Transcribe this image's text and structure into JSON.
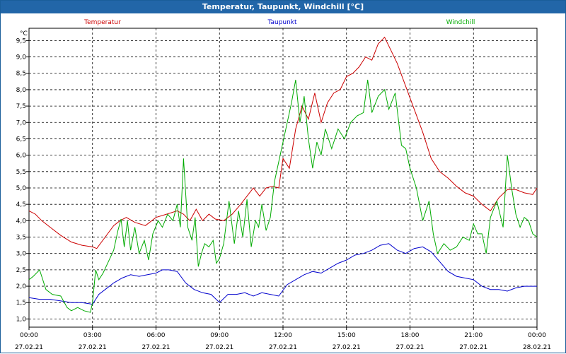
{
  "chart_data": {
    "type": "line",
    "title": "Temperatur, Taupunkt, Windchill [°C]",
    "ylabel": "°C",
    "ylim": [
      0.75,
      9.875
    ],
    "xlim": [
      0,
      24
    ],
    "grid": true,
    "yticks": [
      1.0,
      1.5,
      2.0,
      2.5,
      3.0,
      3.5,
      4.0,
      4.5,
      5.0,
      5.5,
      6.0,
      6.5,
      7.0,
      7.5,
      8.0,
      8.5,
      9.0,
      9.5
    ],
    "ytick_labels": [
      "1,0",
      "1,5",
      "2,0",
      "2,5",
      "3,0",
      "3,5",
      "4,0",
      "4,5",
      "5,0",
      "5,5",
      "6,0",
      "6,5",
      "7,0",
      "7,5",
      "8,0",
      "8,5",
      "9,0",
      "9,5"
    ],
    "xticks": [
      0,
      3,
      6,
      9,
      12,
      15,
      18,
      21,
      24
    ],
    "xtick_times": [
      "00:00",
      "03:00",
      "06:00",
      "09:00",
      "12:00",
      "15:00",
      "18:00",
      "21:00",
      "00:00"
    ],
    "xtick_dates": [
      "27.02.21",
      "27.02.21",
      "27.02.21",
      "27.02.21",
      "27.02.21",
      "27.02.21",
      "27.02.21",
      "27.02.21",
      "28.02.21"
    ],
    "legend_placement": "top",
    "series": [
      {
        "name": "Temperatur",
        "color": "#cc0000",
        "x": [
          0,
          0.3,
          0.6,
          1,
          1.5,
          2,
          2.5,
          3,
          3.2,
          3.6,
          4,
          4.3,
          4.6,
          5,
          5.5,
          6,
          6.5,
          7,
          7.3,
          7.6,
          7.9,
          8.2,
          8.5,
          8.8,
          9.2,
          9.6,
          10,
          10.3,
          10.6,
          10.9,
          11.2,
          11.5,
          11.8,
          12,
          12.3,
          12.6,
          12.9,
          13.2,
          13.5,
          13.8,
          14.1,
          14.4,
          14.7,
          15,
          15.3,
          15.6,
          15.9,
          16.2,
          16.5,
          16.8,
          17.1,
          17.4,
          17.8,
          18.2,
          18.6,
          19,
          19.4,
          19.8,
          20.2,
          20.6,
          21,
          21.4,
          21.8,
          22.2,
          22.6,
          23,
          23.4,
          23.8,
          24
        ],
        "values": [
          4.3,
          4.2,
          4.0,
          3.8,
          3.55,
          3.35,
          3.25,
          3.2,
          3.15,
          3.5,
          3.85,
          4.0,
          4.1,
          3.95,
          3.85,
          4.1,
          4.2,
          4.3,
          4.2,
          4.0,
          4.35,
          4.0,
          4.2,
          4.05,
          4.0,
          4.2,
          4.5,
          4.75,
          5.0,
          4.75,
          5.0,
          5.05,
          5.0,
          5.9,
          5.6,
          6.8,
          7.5,
          7.1,
          7.9,
          7.0,
          7.6,
          7.9,
          8.0,
          8.4,
          8.5,
          8.7,
          9.0,
          8.9,
          9.4,
          9.6,
          9.2,
          8.8,
          8.1,
          7.4,
          6.7,
          5.9,
          5.5,
          5.3,
          5.05,
          4.85,
          4.75,
          4.5,
          4.3,
          4.7,
          4.95,
          4.95,
          4.85,
          4.8,
          5.0
        ]
      },
      {
        "name": "Taupunkt",
        "color": "#0000cc",
        "x": [
          0,
          0.5,
          1,
          1.5,
          2,
          2.5,
          3,
          3.3,
          3.6,
          4,
          4.4,
          4.8,
          5.2,
          5.6,
          6,
          6.3,
          6.6,
          7,
          7.4,
          7.8,
          8.2,
          8.6,
          9,
          9.4,
          9.8,
          10.2,
          10.6,
          11,
          11.4,
          11.8,
          12.2,
          12.6,
          13,
          13.4,
          13.8,
          14.2,
          14.6,
          15,
          15.4,
          15.8,
          16.2,
          16.6,
          17,
          17.4,
          17.8,
          18.2,
          18.6,
          19,
          19.4,
          19.8,
          20.2,
          20.6,
          21,
          21.4,
          21.8,
          22.2,
          22.6,
          23,
          23.4,
          23.8,
          24
        ],
        "values": [
          1.65,
          1.6,
          1.6,
          1.55,
          1.5,
          1.5,
          1.45,
          1.75,
          1.9,
          2.1,
          2.25,
          2.35,
          2.3,
          2.35,
          2.4,
          2.5,
          2.5,
          2.45,
          2.1,
          1.9,
          1.8,
          1.75,
          1.5,
          1.75,
          1.75,
          1.8,
          1.7,
          1.8,
          1.75,
          1.7,
          2.05,
          2.2,
          2.35,
          2.45,
          2.4,
          2.55,
          2.7,
          2.8,
          2.95,
          3.0,
          3.1,
          3.25,
          3.3,
          3.1,
          3.0,
          3.15,
          3.2,
          3.05,
          2.75,
          2.45,
          2.3,
          2.25,
          2.2,
          2.0,
          1.9,
          1.9,
          1.85,
          1.95,
          2.0,
          2.0,
          2.0
        ]
      },
      {
        "name": "Windchill",
        "color": "#00aa00",
        "x": [
          0,
          0.2,
          0.5,
          0.8,
          1.1,
          1.5,
          1.8,
          2.0,
          2.3,
          2.6,
          2.9,
          3.0,
          3.15,
          3.3,
          3.5,
          3.75,
          4.0,
          4.2,
          4.35,
          4.5,
          4.65,
          4.8,
          5.0,
          5.2,
          5.45,
          5.65,
          5.85,
          6.1,
          6.3,
          6.55,
          6.8,
          7.0,
          7.15,
          7.3,
          7.5,
          7.7,
          7.85,
          8.0,
          8.15,
          8.3,
          8.5,
          8.7,
          8.85,
          9.0,
          9.2,
          9.45,
          9.7,
          9.9,
          10.1,
          10.3,
          10.5,
          10.7,
          10.85,
          11.0,
          11.2,
          11.4,
          11.6,
          11.8,
          12.0,
          12.2,
          12.4,
          12.6,
          12.8,
          13.0,
          13.2,
          13.4,
          13.6,
          13.8,
          14.0,
          14.3,
          14.6,
          14.9,
          15.2,
          15.5,
          15.8,
          16.0,
          16.2,
          16.5,
          16.8,
          17.0,
          17.3,
          17.6,
          17.8,
          18.0,
          18.3,
          18.6,
          18.9,
          19.1,
          19.3,
          19.6,
          19.9,
          20.2,
          20.5,
          20.8,
          21.0,
          21.2,
          21.4,
          21.6,
          21.8,
          22.1,
          22.4,
          22.6,
          22.8,
          23.0,
          23.2,
          23.4,
          23.6,
          23.8,
          24
        ],
        "values": [
          2.2,
          2.3,
          2.5,
          1.9,
          1.75,
          1.7,
          1.35,
          1.25,
          1.35,
          1.25,
          1.2,
          1.5,
          2.5,
          2.2,
          2.4,
          2.75,
          3.1,
          3.7,
          4.05,
          3.2,
          4.0,
          3.1,
          3.8,
          3.0,
          3.4,
          2.8,
          3.6,
          4.0,
          3.8,
          4.2,
          4.0,
          4.5,
          3.8,
          5.9,
          3.8,
          3.4,
          4.1,
          2.6,
          3.0,
          3.3,
          3.2,
          3.4,
          2.7,
          2.85,
          3.3,
          4.6,
          3.3,
          4.3,
          3.5,
          4.65,
          3.2,
          4.0,
          3.8,
          4.5,
          3.7,
          4.1,
          5.2,
          5.8,
          6.4,
          7.0,
          7.6,
          8.3,
          7.0,
          7.8,
          6.5,
          5.6,
          6.4,
          6.0,
          6.8,
          6.2,
          6.8,
          6.5,
          7.0,
          7.2,
          7.3,
          8.3,
          7.3,
          7.8,
          8.0,
          7.4,
          7.9,
          6.3,
          6.2,
          5.6,
          5.0,
          4.0,
          4.6,
          3.6,
          3.0,
          3.3,
          3.1,
          3.2,
          3.5,
          3.4,
          3.9,
          3.6,
          3.6,
          3.0,
          4.1,
          4.6,
          3.8,
          6.0,
          5.0,
          4.2,
          3.8,
          4.1,
          4.0,
          3.6,
          3.5
        ]
      }
    ]
  }
}
